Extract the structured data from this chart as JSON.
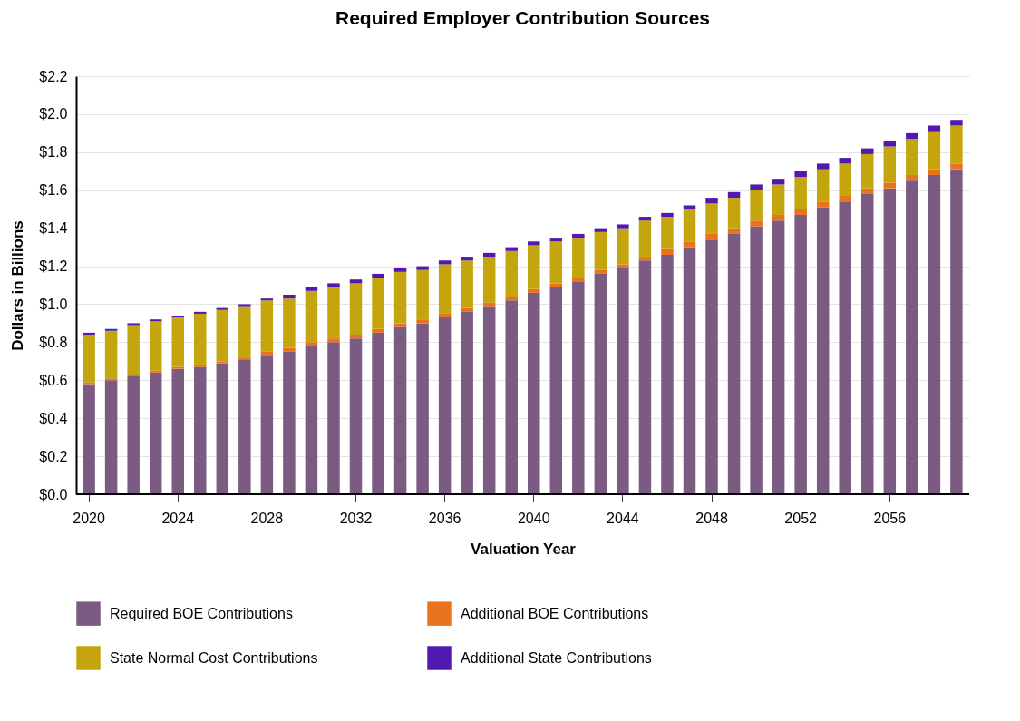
{
  "chart_data": {
    "type": "bar",
    "title": "Required Employer Contribution Sources",
    "xlabel": "Valuation Year",
    "ylabel": "Dollars in Billions",
    "categories": [
      "2020",
      null,
      null,
      null,
      "2024",
      null,
      null,
      null,
      "2028",
      null,
      null,
      null,
      "2032",
      null,
      null,
      null,
      "2036",
      null,
      null,
      null,
      "2040",
      null,
      null,
      null,
      "2044",
      null,
      null,
      null,
      "2048",
      null,
      null,
      null,
      "2052",
      null,
      null,
      null,
      "2056",
      null,
      null,
      null
    ],
    "stacked": true,
    "series": [
      {
        "name": "Required BOE Contributions",
        "color": "#7b5b82",
        "values": [
          0.58,
          0.6,
          0.62,
          0.64,
          0.66,
          0.67,
          0.69,
          0.71,
          0.73,
          0.75,
          0.78,
          0.8,
          0.82,
          0.85,
          0.88,
          0.9,
          0.93,
          0.96,
          0.99,
          1.02,
          1.06,
          1.09,
          1.12,
          1.16,
          1.19,
          1.23,
          1.26,
          1.3,
          1.34,
          1.37,
          1.41,
          1.44,
          1.47,
          1.51,
          1.54,
          1.58,
          1.61,
          1.65,
          1.68,
          1.71
        ]
      },
      {
        "name": "Additional BOE Contributions",
        "color": "#e8731c",
        "values": [
          0.01,
          0.01,
          0.01,
          0.01,
          0.01,
          0.01,
          0.01,
          0.01,
          0.02,
          0.02,
          0.02,
          0.02,
          0.02,
          0.02,
          0.02,
          0.02,
          0.02,
          0.02,
          0.02,
          0.02,
          0.02,
          0.02,
          0.02,
          0.02,
          0.02,
          0.02,
          0.03,
          0.03,
          0.03,
          0.03,
          0.03,
          0.03,
          0.03,
          0.03,
          0.03,
          0.03,
          0.03,
          0.03,
          0.03,
          0.03
        ]
      },
      {
        "name": "State Normal Cost Contributions",
        "color": "#c4a50e",
        "values": [
          0.25,
          0.25,
          0.26,
          0.26,
          0.26,
          0.27,
          0.27,
          0.27,
          0.27,
          0.26,
          0.27,
          0.27,
          0.27,
          0.27,
          0.27,
          0.26,
          0.26,
          0.25,
          0.24,
          0.24,
          0.23,
          0.22,
          0.21,
          0.2,
          0.19,
          0.19,
          0.17,
          0.17,
          0.16,
          0.16,
          0.16,
          0.16,
          0.17,
          0.17,
          0.17,
          0.18,
          0.19,
          0.19,
          0.2,
          0.2
        ]
      },
      {
        "name": "Additional State Contributions",
        "color": "#5019b0",
        "values": [
          0.01,
          0.01,
          0.01,
          0.01,
          0.01,
          0.01,
          0.01,
          0.01,
          0.01,
          0.02,
          0.02,
          0.02,
          0.02,
          0.02,
          0.02,
          0.02,
          0.02,
          0.02,
          0.02,
          0.02,
          0.02,
          0.02,
          0.02,
          0.02,
          0.02,
          0.02,
          0.02,
          0.02,
          0.03,
          0.03,
          0.03,
          0.03,
          0.03,
          0.03,
          0.03,
          0.03,
          0.03,
          0.03,
          0.03,
          0.03
        ]
      }
    ],
    "ylim": [
      0,
      2.2
    ],
    "yticks": [
      {
        "value": 0,
        "label": "$0.0"
      },
      {
        "value": 0.2,
        "label": "$0.2"
      },
      {
        "value": 0.4,
        "label": "$0.4"
      },
      {
        "value": 0.6,
        "label": "$0.6"
      },
      {
        "value": 0.8,
        "label": "$0.8"
      },
      {
        "value": 1.0,
        "label": "$1.0"
      },
      {
        "value": 1.2,
        "label": "$1.2"
      },
      {
        "value": 1.4,
        "label": "$1.4"
      },
      {
        "value": 1.6,
        "label": "$1.6"
      },
      {
        "value": 1.8,
        "label": "$1.8"
      },
      {
        "value": 2.0,
        "label": "$2.0"
      },
      {
        "value": 2.2,
        "label": "$2.2"
      }
    ],
    "grid": "y",
    "legend": "bottom"
  }
}
